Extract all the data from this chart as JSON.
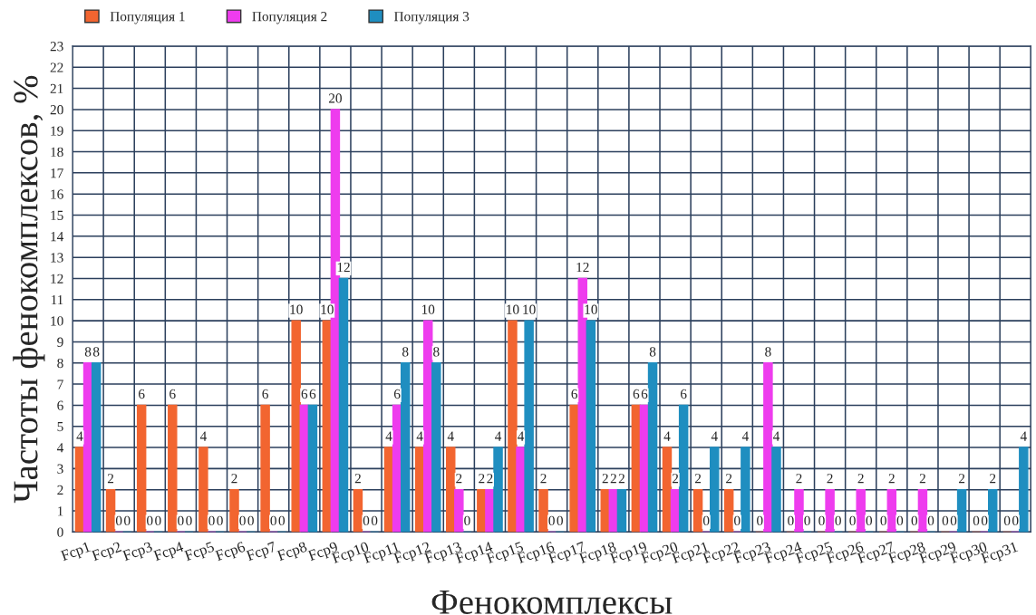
{
  "chart_data": {
    "type": "bar",
    "xlabel": "Фенокомплексы",
    "ylabel": "Частоты фенокомплексов, %",
    "categories": [
      "Fcp1",
      "Fcp2",
      "Fcp3",
      "Fcp4",
      "Fcp5",
      "Fcp6",
      "Fcp7",
      "Fcp8",
      "Fcp9",
      "Fcp10",
      "Fcp11",
      "Fcp12",
      "Fcp13",
      "Fcp14",
      "Fcp15",
      "Fcp16",
      "Fcp17",
      "Fcp18",
      "Fcp19",
      "Fcp20",
      "Fcp21",
      "Fcp22",
      "Fcp23",
      "Fcp24",
      "Fcp25",
      "Fcp26",
      "Fcp27",
      "Fcp28",
      "Fcp29",
      "Fcp30",
      "Fcp31"
    ],
    "series": [
      {
        "name": "Популяция 1",
        "color": "#f26530",
        "values": [
          4,
          2,
          6,
          6,
          4,
          2,
          6,
          10,
          10,
          2,
          4,
          4,
          4,
          2,
          10,
          2,
          6,
          2,
          6,
          4,
          2,
          2,
          0,
          0,
          0,
          0,
          0,
          0,
          0,
          0,
          0
        ]
      },
      {
        "name": "Популяция 2",
        "color": "#ee3cee",
        "values": [
          8,
          0,
          0,
          0,
          0,
          0,
          0,
          6,
          20,
          0,
          6,
          10,
          2,
          2,
          4,
          0,
          12,
          2,
          6,
          2,
          0,
          0,
          8,
          2,
          2,
          2,
          2,
          2,
          0,
          0,
          0
        ]
      },
      {
        "name": "Популяция 3",
        "color": "#1f8ec0",
        "values": [
          8,
          0,
          0,
          0,
          0,
          0,
          0,
          6,
          12,
          0,
          8,
          8,
          0,
          4,
          10,
          0,
          10,
          2,
          8,
          6,
          4,
          4,
          4,
          0,
          0,
          0,
          0,
          0,
          2,
          2,
          4
        ]
      }
    ],
    "ylim": [
      0,
      23
    ],
    "yticks": [
      0,
      1,
      2,
      3,
      4,
      5,
      6,
      7,
      8,
      9,
      10,
      11,
      12,
      13,
      14,
      15,
      16,
      17,
      18,
      19,
      20,
      21,
      22,
      23
    ],
    "grid": true,
    "legend": "top left",
    "data_labels": true
  }
}
